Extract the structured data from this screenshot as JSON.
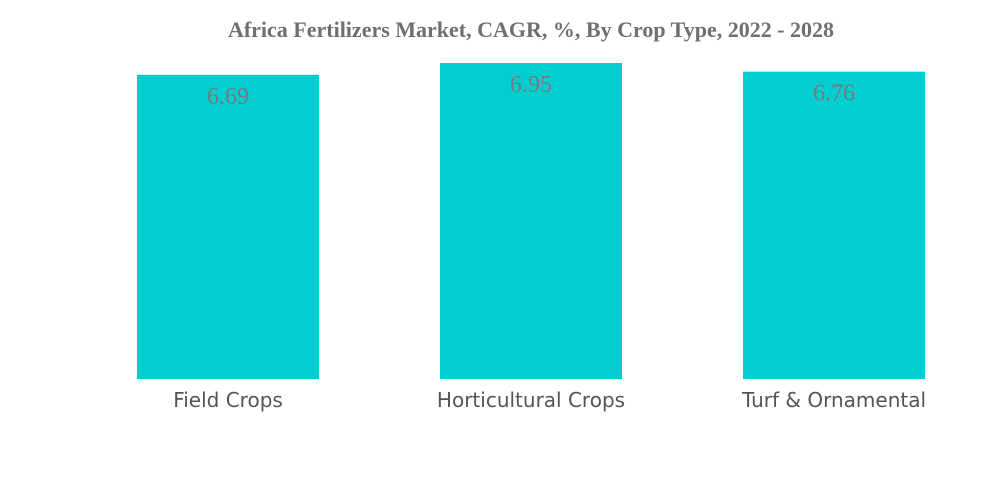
{
  "chart_data": {
    "type": "bar",
    "title": "Africa Fertilizers Market, CAGR, %, By Crop Type, 2022 - 2028",
    "categories": [
      "Field Crops",
      "Horticultural Crops",
      "Turf & Ornamental"
    ],
    "values": [
      6.69,
      6.95,
      6.76
    ],
    "value_labels": [
      "6.69",
      "6.95",
      "6.76"
    ],
    "ylim": [
      0,
      6.95
    ],
    "grid": false,
    "bar_color": "#00CED1",
    "title_color": "#6f6f6f",
    "value_label_color": "#7a7a7a",
    "category_label_color": "#555555"
  }
}
